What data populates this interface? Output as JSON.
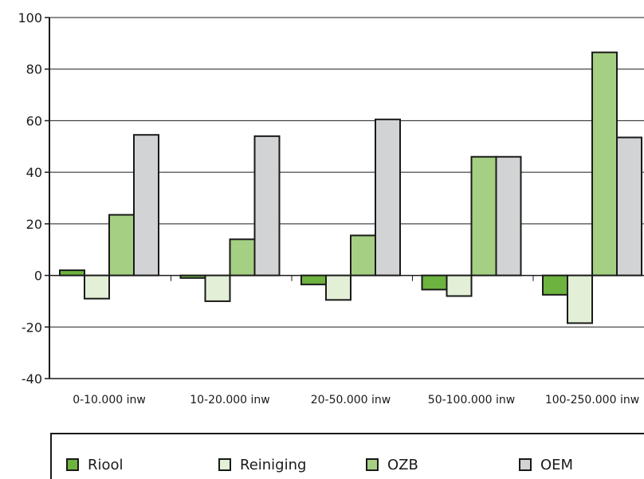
{
  "chart_data": {
    "type": "bar",
    "categories": [
      "0-10.000 inw",
      "10-20.000 inw",
      "20-50.000 inw",
      "50-100.000 inw",
      "100-250.000 inw"
    ],
    "series": [
      {
        "name": "Riool",
        "values": [
          2,
          -1,
          -3.5,
          -5.5,
          -7.5
        ]
      },
      {
        "name": "Reiniging",
        "values": [
          -9,
          -10,
          -9.5,
          -8,
          -18.5
        ]
      },
      {
        "name": "OZB",
        "values": [
          23.5,
          14,
          15.5,
          46,
          86.5
        ]
      },
      {
        "name": "OEM",
        "values": [
          54.5,
          54,
          60.5,
          46,
          53.5
        ]
      }
    ],
    "ylim": [
      -40,
      100
    ],
    "yticks": [
      -40,
      -20,
      0,
      20,
      40,
      60,
      80,
      100
    ],
    "ytick_labels": [
      "-40",
      "-20",
      "0",
      "20",
      "40",
      "60",
      "80",
      "100"
    ],
    "grid": true,
    "legend_position": "bottom",
    "title": "",
    "xlabel": "",
    "ylabel": ""
  },
  "colors": {
    "Riool": "#6db33f",
    "Reiniging": "#e3efd6",
    "OZB": "#a5cf82",
    "OEM": "#d1d3d4",
    "axis": "#1a1a1a",
    "grid": "#1a1a1a"
  }
}
